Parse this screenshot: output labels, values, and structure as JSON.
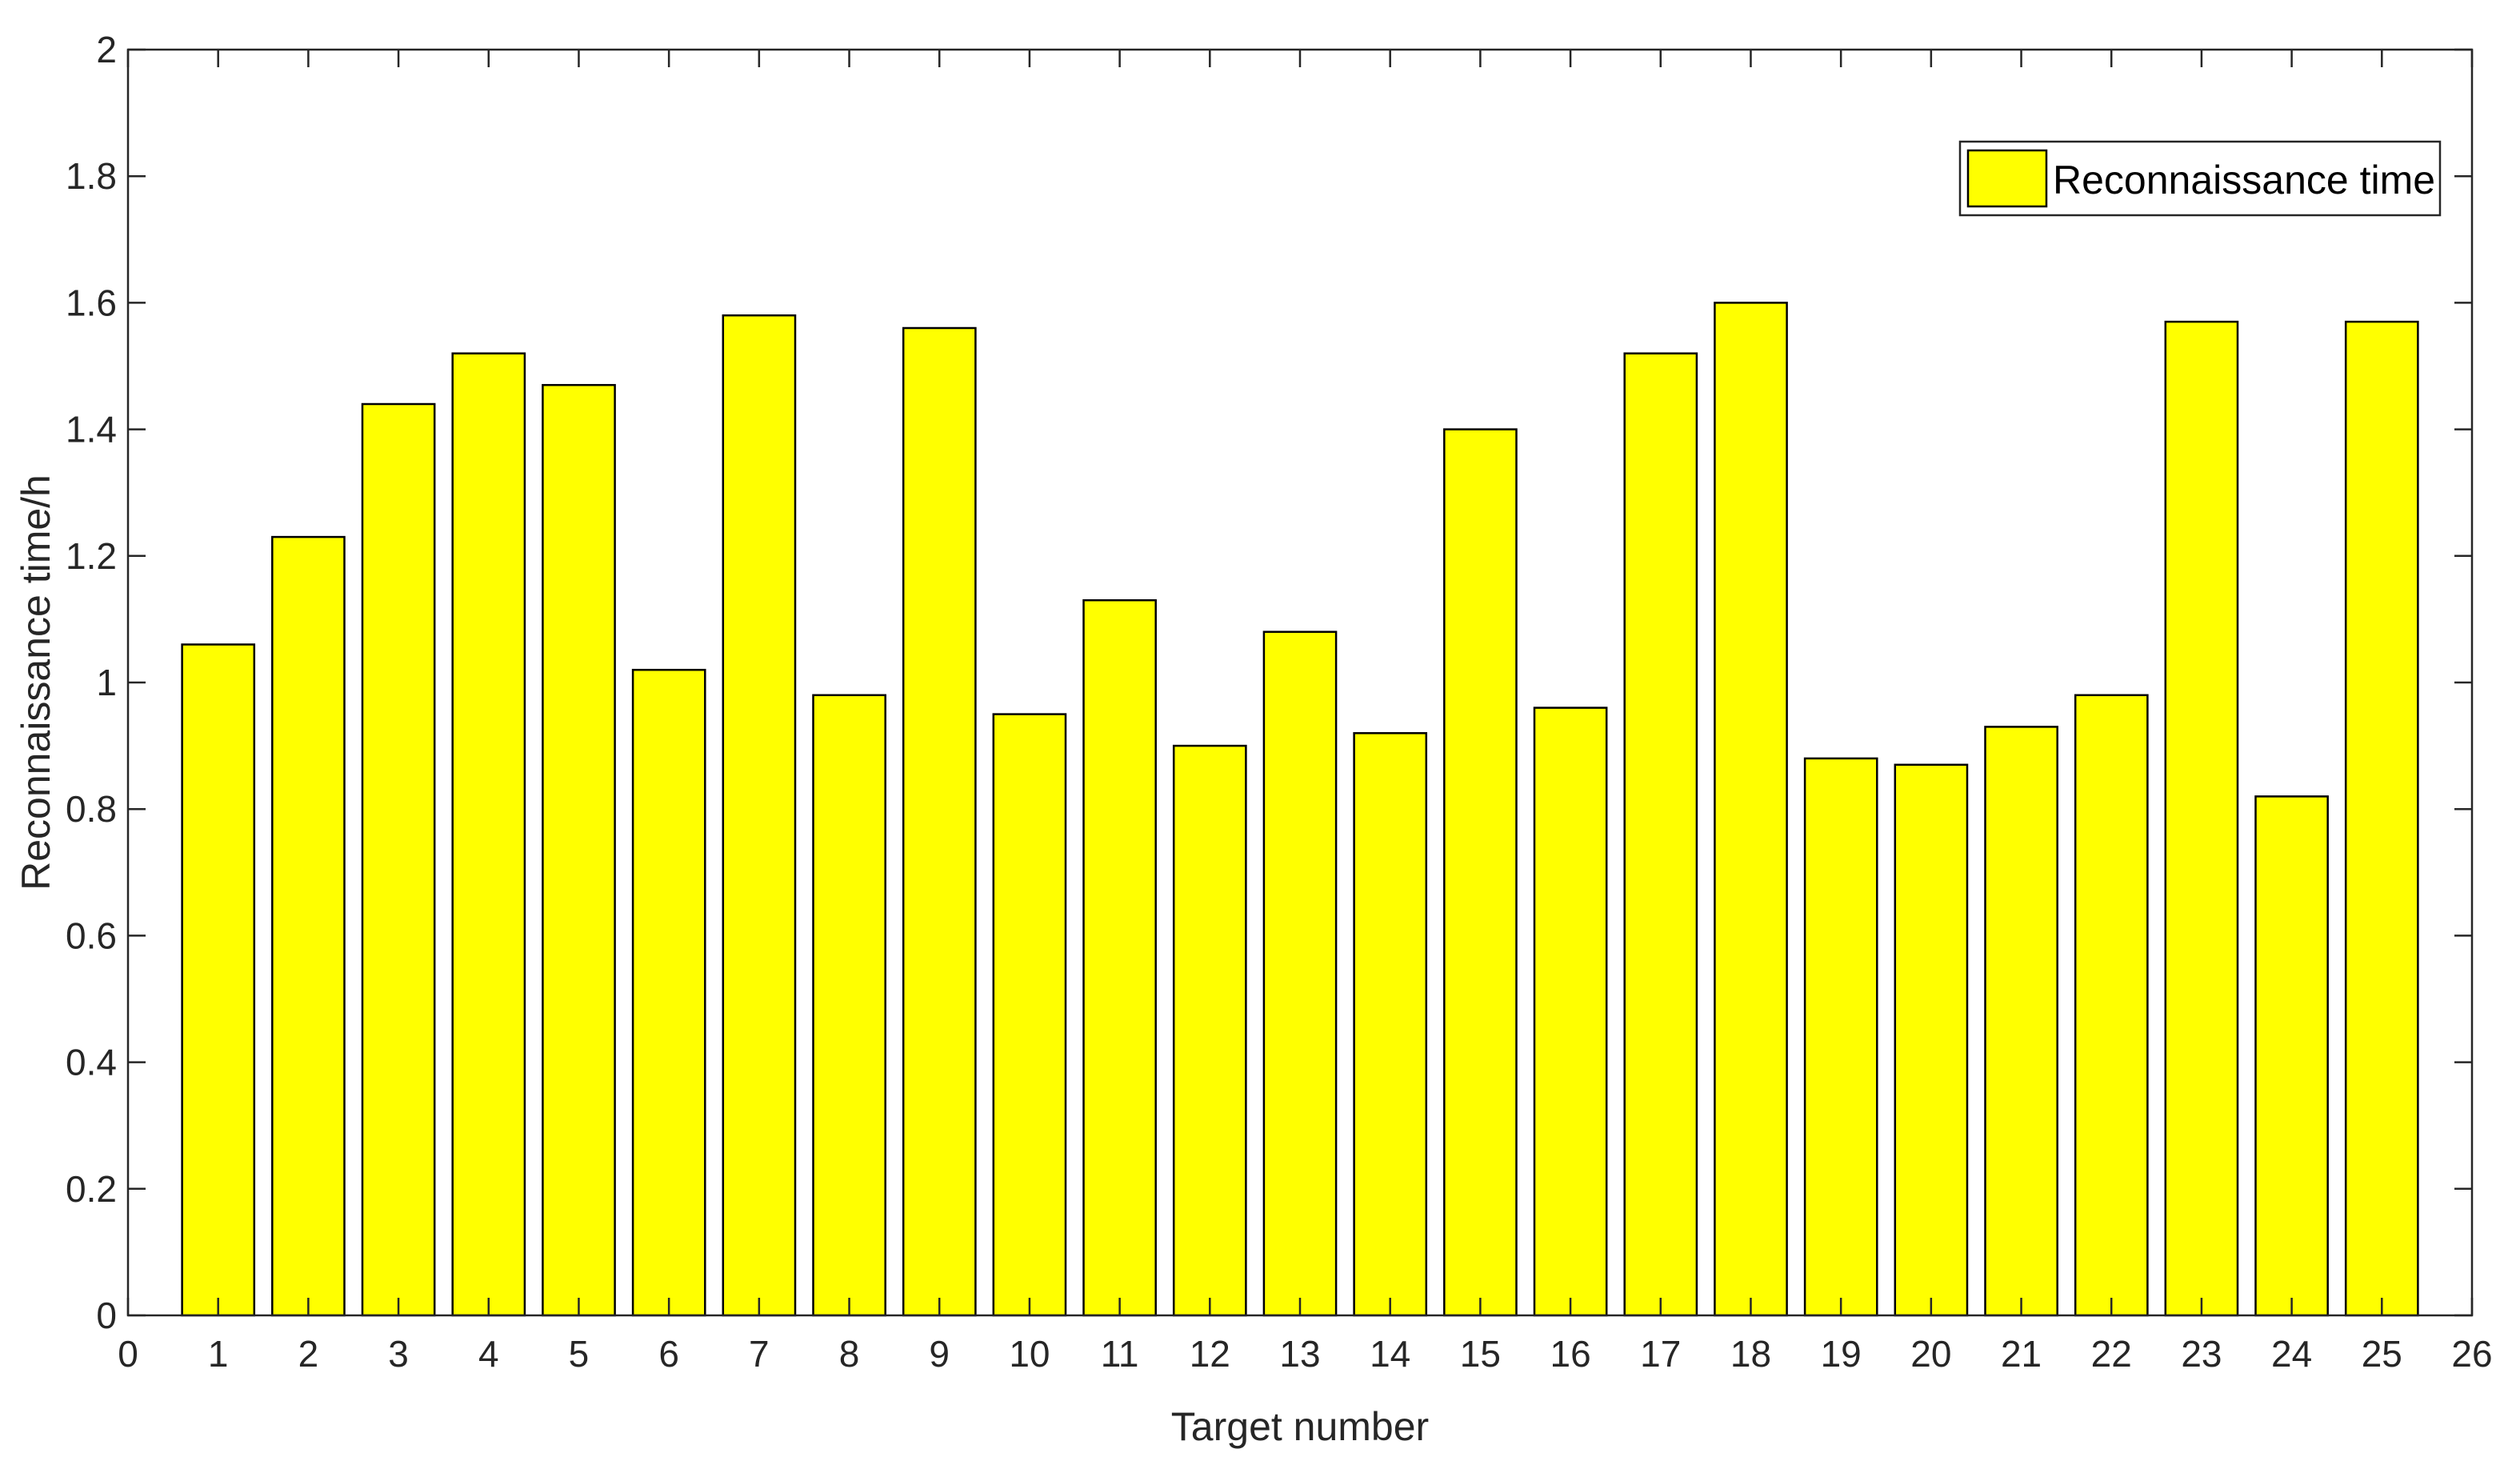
{
  "chart_data": {
    "type": "bar",
    "title": "",
    "xlabel": "Target number",
    "ylabel": "Reconnaissance time/h",
    "xlim": [
      0,
      26
    ],
    "ylim": [
      0,
      2
    ],
    "xticks": [
      "0",
      "1",
      "2",
      "3",
      "4",
      "5",
      "6",
      "7",
      "8",
      "9",
      "10",
      "11",
      "12",
      "13",
      "14",
      "15",
      "16",
      "17",
      "18",
      "19",
      "20",
      "21",
      "22",
      "23",
      "24",
      "25",
      "26"
    ],
    "yticks": [
      "0",
      "0.2",
      "0.4",
      "0.6",
      "0.8",
      "1",
      "1.2",
      "1.4",
      "1.6",
      "1.8",
      "2"
    ],
    "grid": false,
    "legend_position": "top-right",
    "bar_color": "#ffff00",
    "edge_color": "#000000",
    "series": [
      {
        "name": "Reconnaissance time",
        "x": [
          1,
          2,
          3,
          4,
          5,
          6,
          7,
          8,
          9,
          10,
          11,
          12,
          13,
          14,
          15,
          16,
          17,
          18,
          19,
          20,
          21,
          22,
          23,
          24,
          25
        ],
        "values": [
          1.06,
          1.23,
          1.44,
          1.52,
          1.47,
          1.02,
          1.58,
          0.98,
          1.56,
          0.95,
          1.13,
          0.9,
          1.08,
          0.92,
          1.4,
          0.96,
          1.52,
          1.6,
          0.88,
          0.87,
          0.93,
          0.98,
          1.57,
          0.82,
          1.57
        ]
      }
    ]
  }
}
